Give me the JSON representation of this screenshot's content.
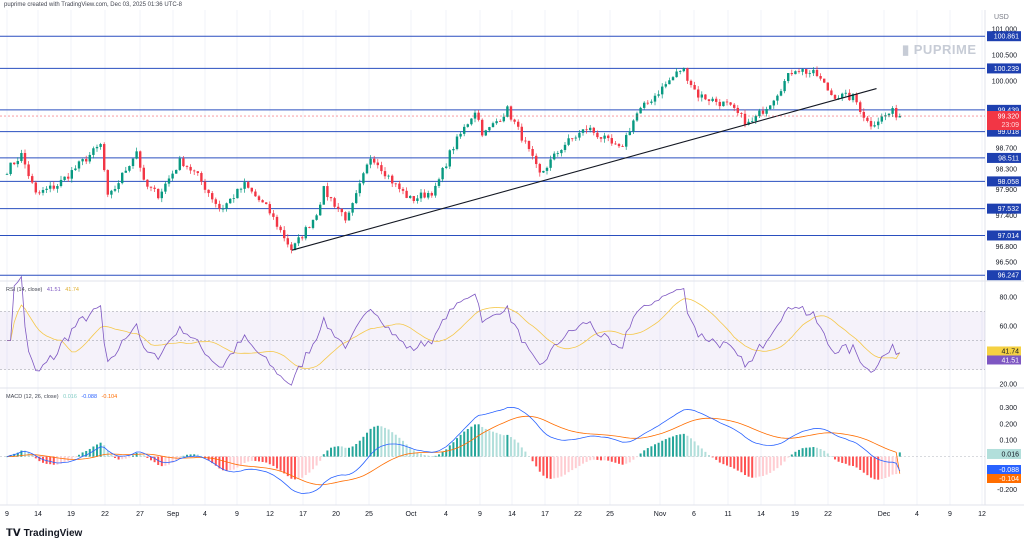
{
  "header": {
    "caption": "puprime created with TradingView.com, Dec 03, 2025 01:36 UTC-8"
  },
  "watermark": "PUPRIME",
  "currency": "USD",
  "footer": {
    "brand": "TradingView"
  },
  "colors": {
    "up": "#089981",
    "down": "#f23645",
    "level": "#2a4fbf",
    "trend": "#131722",
    "rsi": "#7e57c2",
    "rsi_ma": "#f5c84c",
    "macd": "#2962ff",
    "signal": "#ff6d00"
  },
  "rsi_legend": {
    "title": "RSI (14, close)",
    "rsi": "41.51",
    "ma": "41.74"
  },
  "macd_legend": {
    "title": "MACD (12, 26, close)",
    "hist": "0.016",
    "macd": "-0.088",
    "signal": "-0.104"
  },
  "chart_data": {
    "type": "candlestick",
    "x_ticks": [
      "9",
      "14",
      "19",
      "22",
      "27",
      "Sep",
      "4",
      "9",
      "12",
      "17",
      "20",
      "25",
      "Oct",
      "4",
      "9",
      "14",
      "17",
      "22",
      "25",
      "Nov",
      "6",
      "11",
      "14",
      "19",
      "22",
      "Dec",
      "4",
      "9",
      "12"
    ],
    "y_ticks": [
      "101.000",
      "100.500",
      "100.000",
      "98.700",
      "98.300",
      "97.900",
      "97.400",
      "96.800",
      "96.500"
    ],
    "ylim": [
      96.2,
      101.0
    ],
    "last_price": "99.320",
    "countdown": "23:09",
    "levels": [
      "100.861",
      "100.239",
      "99.439",
      "99.018",
      "98.511",
      "98.058",
      "97.532",
      "97.014",
      "96.247"
    ],
    "trendline": [
      {
        "date": "2025-09-16",
        "price": 96.73
      },
      {
        "date": "2025-11-30",
        "price": 99.85
      }
    ],
    "closes": [
      [
        "2025-08-09",
        98.28
      ],
      [
        "2025-08-11",
        98.57
      ],
      [
        "2025-08-13",
        97.8
      ],
      [
        "2025-08-16",
        97.99
      ],
      [
        "2025-08-19",
        98.38
      ],
      [
        "2025-08-22",
        98.76
      ],
      [
        "2025-08-23",
        97.7
      ],
      [
        "2025-08-27",
        98.66
      ],
      [
        "2025-08-28",
        97.99
      ],
      [
        "2025-08-30",
        97.8
      ],
      [
        "2025-09-02",
        98.47
      ],
      [
        "2025-09-04",
        98.18
      ],
      [
        "2025-09-07",
        97.51
      ],
      [
        "2025-09-10",
        97.99
      ],
      [
        "2025-09-13",
        97.51
      ],
      [
        "2025-09-16",
        96.73
      ],
      [
        "2025-09-19",
        97.41
      ],
      [
        "2025-09-20",
        97.89
      ],
      [
        "2025-09-23",
        97.31
      ],
      [
        "2025-09-26",
        98.57
      ],
      [
        "2025-09-29",
        97.99
      ],
      [
        "2025-10-01",
        97.7
      ],
      [
        "2025-10-04",
        97.89
      ],
      [
        "2025-10-06",
        98.66
      ],
      [
        "2025-10-09",
        99.44
      ],
      [
        "2025-10-10",
        98.95
      ],
      [
        "2025-10-13",
        99.44
      ],
      [
        "2025-10-15",
        98.86
      ],
      [
        "2025-10-17",
        98.18
      ],
      [
        "2025-10-20",
        98.76
      ],
      [
        "2025-10-23",
        99.09
      ],
      [
        "2025-10-27",
        98.66
      ],
      [
        "2025-10-29",
        99.34
      ],
      [
        "2025-11-01",
        99.82
      ],
      [
        "2025-11-04",
        100.25
      ],
      [
        "2025-11-06",
        99.73
      ],
      [
        "2025-11-10",
        99.53
      ],
      [
        "2025-11-13",
        99.15
      ],
      [
        "2025-11-16",
        99.63
      ],
      [
        "2025-11-19",
        100.25
      ],
      [
        "2025-11-22",
        100.11
      ],
      [
        "2025-11-24",
        99.73
      ],
      [
        "2025-11-27",
        99.67
      ],
      [
        "2025-11-29",
        99.15
      ],
      [
        "2025-12-02",
        99.4
      ],
      [
        "2025-12-03",
        99.32
      ]
    ],
    "rsi": {
      "y_ticks": [
        "80.00",
        "60.00",
        "20.00"
      ],
      "band": [
        30,
        70
      ],
      "last": 41.51,
      "ma_last": 41.74
    },
    "macd": {
      "y_ticks": [
        "0.300",
        "0.200",
        "0.100",
        "-0.200"
      ],
      "hist_last": 0.016,
      "macd_last": -0.088,
      "signal_last": -0.104
    }
  }
}
